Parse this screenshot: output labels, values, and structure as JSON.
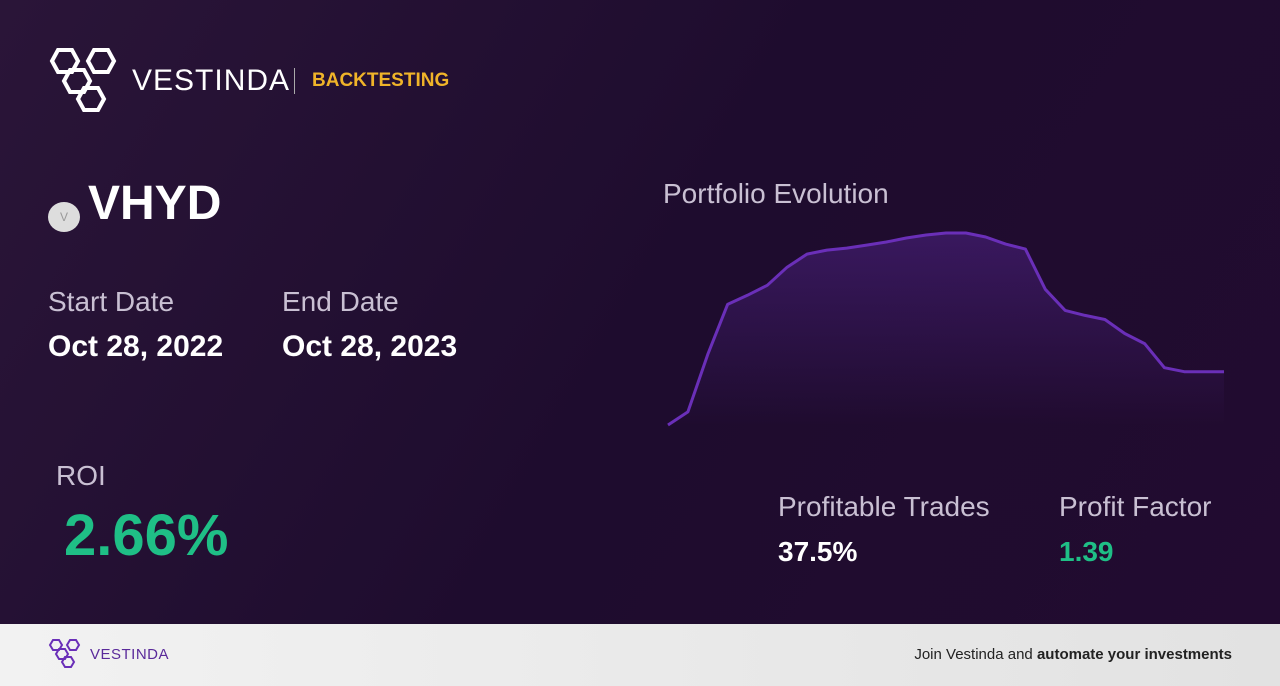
{
  "header": {
    "brand": "VESTINDA",
    "section": "BACKTESTING"
  },
  "ticker": {
    "icon": "V",
    "symbol": "VHYD"
  },
  "dates": {
    "start_label": "Start Date",
    "start": "Oct 28, 2022",
    "end_label": "End Date",
    "end": "Oct 28, 2023"
  },
  "roi": {
    "label": "ROI",
    "value": "2.66%"
  },
  "chart": {
    "title": "Portfolio Evolution",
    "color": "#6a2fb8",
    "values": [
      0,
      13,
      70,
      120,
      129,
      139,
      157,
      170,
      174,
      176,
      179,
      182,
      186,
      189,
      191,
      191,
      187,
      180,
      175,
      135,
      114,
      109,
      105,
      91,
      81,
      57,
      53,
      53,
      53
    ]
  },
  "stats": {
    "profitable_label": "Profitable Trades",
    "profitable": "37.5%",
    "factor_label": "Profit Factor",
    "factor": "1.39"
  },
  "footer": {
    "brand": "VESTINDA",
    "cta_plain": "Join Vestinda and",
    "cta_bold": "automate your investments"
  }
}
